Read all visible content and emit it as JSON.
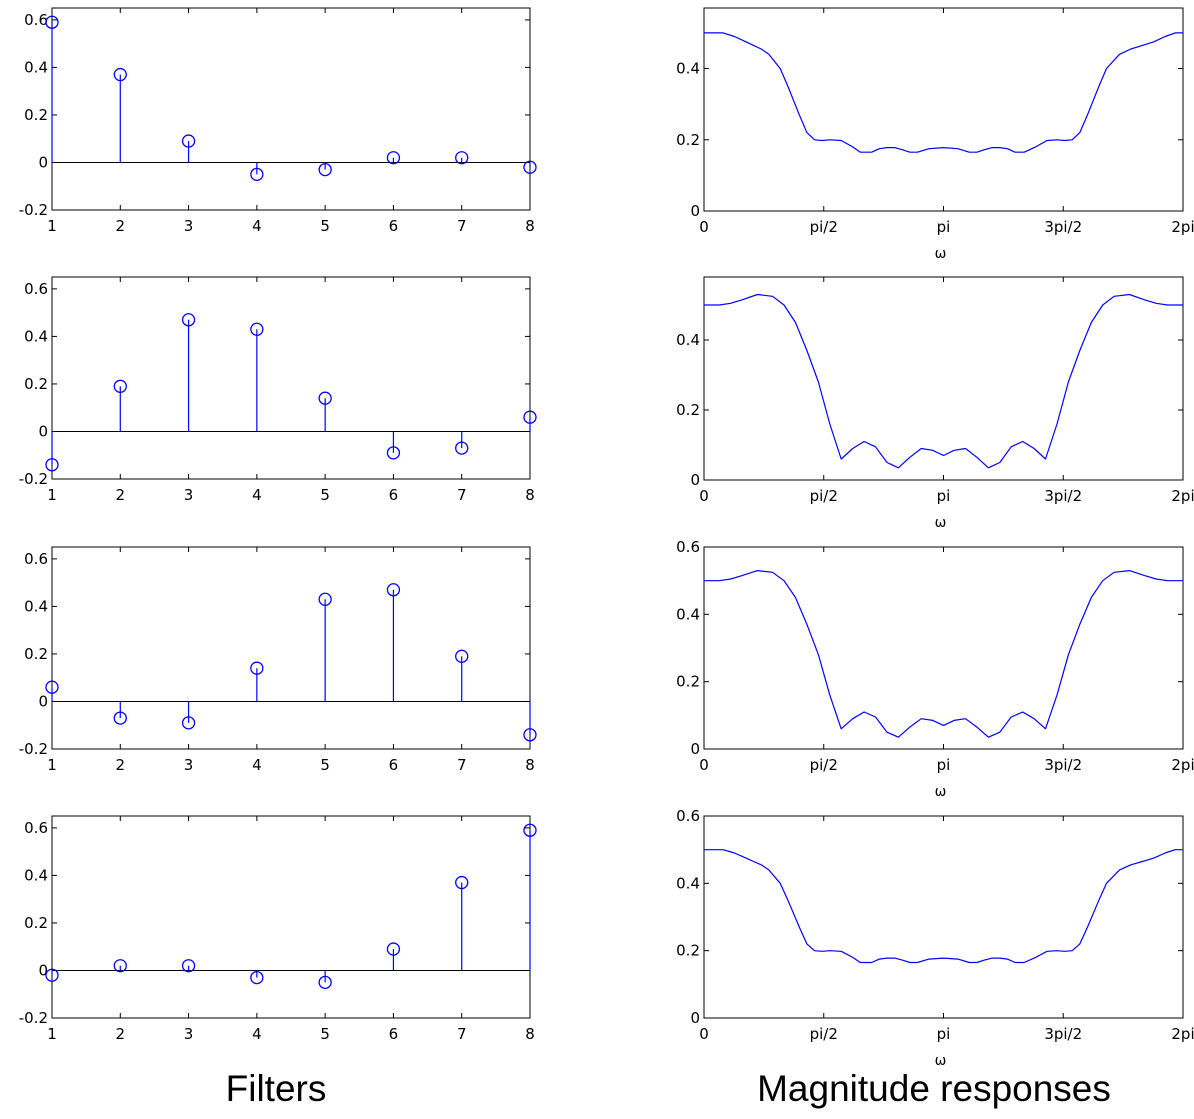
{
  "captions": {
    "left": "Filters",
    "right": "Magnitude responses"
  },
  "colors": {
    "series": "#0000ff",
    "axes": "#000000"
  },
  "chart_data": [
    {
      "type": "stem",
      "title": "",
      "xlabel": "",
      "ylabel": "",
      "x": [
        1,
        2,
        3,
        4,
        5,
        6,
        7,
        8
      ],
      "values": [
        0.59,
        0.37,
        0.09,
        -0.05,
        -0.03,
        0.02,
        0.02,
        -0.02
      ],
      "xlim": [
        1,
        8
      ],
      "ylim": [
        -0.2,
        0.65
      ],
      "xticks": [
        "1",
        "2",
        "3",
        "4",
        "5",
        "6",
        "7",
        "8"
      ],
      "yticks": [
        -0.2,
        0,
        0.2,
        0.4,
        0.6
      ],
      "yticklabels": [
        "-0.2",
        "0",
        "0.2",
        "0.4",
        "0.6"
      ],
      "grid": false
    },
    {
      "type": "line",
      "title": "",
      "xlabel": "ω",
      "ylabel": "",
      "x": [
        0,
        0.1,
        0.25,
        0.4,
        0.55,
        0.65,
        0.75,
        0.85,
        1.0,
        1.1,
        1.25,
        1.35,
        1.45,
        1.55,
        1.65,
        1.8,
        1.95,
        2.05,
        2.2,
        2.3,
        2.4,
        2.5,
        2.6,
        2.7,
        2.8,
        2.95,
        3.14159,
        3.33,
        3.48,
        3.58,
        3.68,
        3.78,
        3.88,
        3.98,
        4.08,
        4.2,
        4.35,
        4.5,
        4.63,
        4.73,
        4.83,
        4.93,
        5.03,
        5.18,
        5.28,
        5.45,
        5.6,
        5.75,
        5.9,
        6.05,
        6.18,
        6.28319
      ],
      "values": [
        0.5,
        0.5,
        0.5,
        0.49,
        0.475,
        0.465,
        0.455,
        0.44,
        0.4,
        0.35,
        0.27,
        0.22,
        0.2,
        0.198,
        0.2,
        0.198,
        0.18,
        0.165,
        0.165,
        0.175,
        0.178,
        0.178,
        0.172,
        0.165,
        0.165,
        0.175,
        0.178,
        0.175,
        0.165,
        0.165,
        0.172,
        0.178,
        0.178,
        0.175,
        0.165,
        0.165,
        0.18,
        0.198,
        0.2,
        0.198,
        0.2,
        0.22,
        0.27,
        0.35,
        0.4,
        0.44,
        0.455,
        0.465,
        0.475,
        0.49,
        0.5,
        0.5
      ],
      "xlim": [
        0,
        6.28319
      ],
      "ylim": [
        0,
        0.57
      ],
      "xticks": [
        0,
        1.5708,
        3.14159,
        4.71239,
        6.28319
      ],
      "xticklabels": [
        "0",
        "pi/2",
        "pi",
        "3pi/2",
        "2pi"
      ],
      "yticks": [
        0,
        0.2,
        0.4
      ],
      "yticklabels": [
        "0",
        "0.2",
        "0.4"
      ],
      "grid": false
    },
    {
      "type": "stem",
      "title": "",
      "xlabel": "",
      "ylabel": "",
      "x": [
        1,
        2,
        3,
        4,
        5,
        6,
        7,
        8
      ],
      "values": [
        -0.14,
        0.19,
        0.47,
        0.43,
        0.14,
        -0.09,
        -0.07,
        0.06
      ],
      "xlim": [
        1,
        8
      ],
      "ylim": [
        -0.2,
        0.65
      ],
      "xticks": [
        "1",
        "2",
        "3",
        "4",
        "5",
        "6",
        "7",
        "8"
      ],
      "yticks": [
        -0.2,
        0,
        0.2,
        0.4,
        0.6
      ],
      "yticklabels": [
        "-0.2",
        "0",
        "0.2",
        "0.4",
        "0.6"
      ],
      "grid": false
    },
    {
      "type": "line",
      "title": "",
      "xlabel": "ω",
      "ylabel": "",
      "x": [
        0,
        0.2,
        0.35,
        0.5,
        0.7,
        0.9,
        1.05,
        1.2,
        1.35,
        1.5,
        1.65,
        1.8,
        1.95,
        2.1,
        2.25,
        2.4,
        2.55,
        2.7,
        2.85,
        3.0,
        3.14159,
        3.28,
        3.43,
        3.58,
        3.73,
        3.88,
        4.03,
        4.18,
        4.33,
        4.48,
        4.63,
        4.78,
        4.93,
        5.08,
        5.23,
        5.38,
        5.58,
        5.78,
        5.93,
        6.08,
        6.28319
      ],
      "values": [
        0.5,
        0.5,
        0.505,
        0.515,
        0.53,
        0.525,
        0.5,
        0.45,
        0.37,
        0.28,
        0.16,
        0.06,
        0.09,
        0.11,
        0.095,
        0.05,
        0.035,
        0.065,
        0.09,
        0.085,
        0.07,
        0.085,
        0.09,
        0.065,
        0.035,
        0.05,
        0.095,
        0.11,
        0.09,
        0.06,
        0.16,
        0.28,
        0.37,
        0.45,
        0.5,
        0.525,
        0.53,
        0.515,
        0.505,
        0.5,
        0.5
      ],
      "xlim": [
        0,
        6.28319
      ],
      "ylim": [
        0,
        0.58
      ],
      "xticks": [
        0,
        1.5708,
        3.14159,
        4.71239,
        6.28319
      ],
      "xticklabels": [
        "0",
        "pi/2",
        "pi",
        "3pi/2",
        "2pi"
      ],
      "yticks": [
        0,
        0.2,
        0.4
      ],
      "yticklabels": [
        "0",
        "0.2",
        "0.4"
      ],
      "grid": false
    },
    {
      "type": "stem",
      "title": "",
      "xlabel": "",
      "ylabel": "",
      "x": [
        1,
        2,
        3,
        4,
        5,
        6,
        7,
        8
      ],
      "values": [
        0.06,
        -0.07,
        -0.09,
        0.14,
        0.43,
        0.47,
        0.19,
        -0.14
      ],
      "xlim": [
        1,
        8
      ],
      "ylim": [
        -0.2,
        0.65
      ],
      "xticks": [
        "1",
        "2",
        "3",
        "4",
        "5",
        "6",
        "7",
        "8"
      ],
      "yticks": [
        -0.2,
        0,
        0.2,
        0.4,
        0.6
      ],
      "yticklabels": [
        "-0.2",
        "0",
        "0.2",
        "0.4",
        "0.6"
      ],
      "grid": false
    },
    {
      "type": "line",
      "title": "",
      "xlabel": "ω",
      "ylabel": "",
      "x": [
        0,
        0.2,
        0.35,
        0.5,
        0.7,
        0.9,
        1.05,
        1.2,
        1.35,
        1.5,
        1.65,
        1.8,
        1.95,
        2.1,
        2.25,
        2.4,
        2.55,
        2.7,
        2.85,
        3.0,
        3.14159,
        3.28,
        3.43,
        3.58,
        3.73,
        3.88,
        4.03,
        4.18,
        4.33,
        4.48,
        4.63,
        4.78,
        4.93,
        5.08,
        5.23,
        5.38,
        5.58,
        5.78,
        5.93,
        6.08,
        6.28319
      ],
      "values": [
        0.5,
        0.5,
        0.505,
        0.515,
        0.53,
        0.525,
        0.5,
        0.45,
        0.37,
        0.28,
        0.16,
        0.06,
        0.09,
        0.11,
        0.095,
        0.05,
        0.035,
        0.065,
        0.09,
        0.085,
        0.07,
        0.085,
        0.09,
        0.065,
        0.035,
        0.05,
        0.095,
        0.11,
        0.09,
        0.06,
        0.16,
        0.28,
        0.37,
        0.45,
        0.5,
        0.525,
        0.53,
        0.515,
        0.505,
        0.5,
        0.5
      ],
      "xlim": [
        0,
        6.28319
      ],
      "ylim": [
        0,
        0.6
      ],
      "xticks": [
        0,
        1.5708,
        3.14159,
        4.71239,
        6.28319
      ],
      "xticklabels": [
        "0",
        "pi/2",
        "pi",
        "3pi/2",
        "2pi"
      ],
      "yticks": [
        0,
        0.2,
        0.4,
        0.6
      ],
      "yticklabels": [
        "0",
        "0.2",
        "0.4",
        "0.6"
      ],
      "grid": false
    },
    {
      "type": "stem",
      "title": "",
      "xlabel": "",
      "ylabel": "",
      "x": [
        1,
        2,
        3,
        4,
        5,
        6,
        7,
        8
      ],
      "values": [
        -0.02,
        0.02,
        0.02,
        -0.03,
        -0.05,
        0.09,
        0.37,
        0.59
      ],
      "xlim": [
        1,
        8
      ],
      "ylim": [
        -0.2,
        0.65
      ],
      "xticks": [
        "1",
        "2",
        "3",
        "4",
        "5",
        "6",
        "7",
        "8"
      ],
      "yticks": [
        -0.2,
        0,
        0.2,
        0.4,
        0.6
      ],
      "yticklabels": [
        "-0.2",
        "0",
        "0.2",
        "0.4",
        "0.6"
      ],
      "grid": false
    },
    {
      "type": "line",
      "title": "",
      "xlabel": "ω",
      "ylabel": "",
      "x": [
        0,
        0.1,
        0.25,
        0.4,
        0.55,
        0.65,
        0.75,
        0.85,
        1.0,
        1.1,
        1.25,
        1.35,
        1.45,
        1.55,
        1.65,
        1.8,
        1.95,
        2.05,
        2.2,
        2.3,
        2.4,
        2.5,
        2.6,
        2.7,
        2.8,
        2.95,
        3.14159,
        3.33,
        3.48,
        3.58,
        3.68,
        3.78,
        3.88,
        3.98,
        4.08,
        4.2,
        4.35,
        4.5,
        4.63,
        4.73,
        4.83,
        4.93,
        5.03,
        5.18,
        5.28,
        5.45,
        5.6,
        5.75,
        5.9,
        6.05,
        6.18,
        6.28319
      ],
      "values": [
        0.5,
        0.5,
        0.5,
        0.49,
        0.475,
        0.465,
        0.455,
        0.44,
        0.4,
        0.35,
        0.27,
        0.22,
        0.2,
        0.198,
        0.2,
        0.198,
        0.18,
        0.165,
        0.165,
        0.175,
        0.178,
        0.178,
        0.172,
        0.165,
        0.165,
        0.175,
        0.178,
        0.175,
        0.165,
        0.165,
        0.172,
        0.178,
        0.178,
        0.175,
        0.165,
        0.165,
        0.18,
        0.198,
        0.2,
        0.198,
        0.2,
        0.22,
        0.27,
        0.35,
        0.4,
        0.44,
        0.455,
        0.465,
        0.475,
        0.49,
        0.5,
        0.5
      ],
      "xlim": [
        0,
        6.28319
      ],
      "ylim": [
        0,
        0.6
      ],
      "xticks": [
        0,
        1.5708,
        3.14159,
        4.71239,
        6.28319
      ],
      "xticklabels": [
        "0",
        "pi/2",
        "pi",
        "3pi/2",
        "2pi"
      ],
      "yticks": [
        0,
        0.2,
        0.4,
        0.6
      ],
      "yticklabels": [
        "0",
        "0.2",
        "0.4",
        "0.6"
      ],
      "grid": false
    }
  ]
}
